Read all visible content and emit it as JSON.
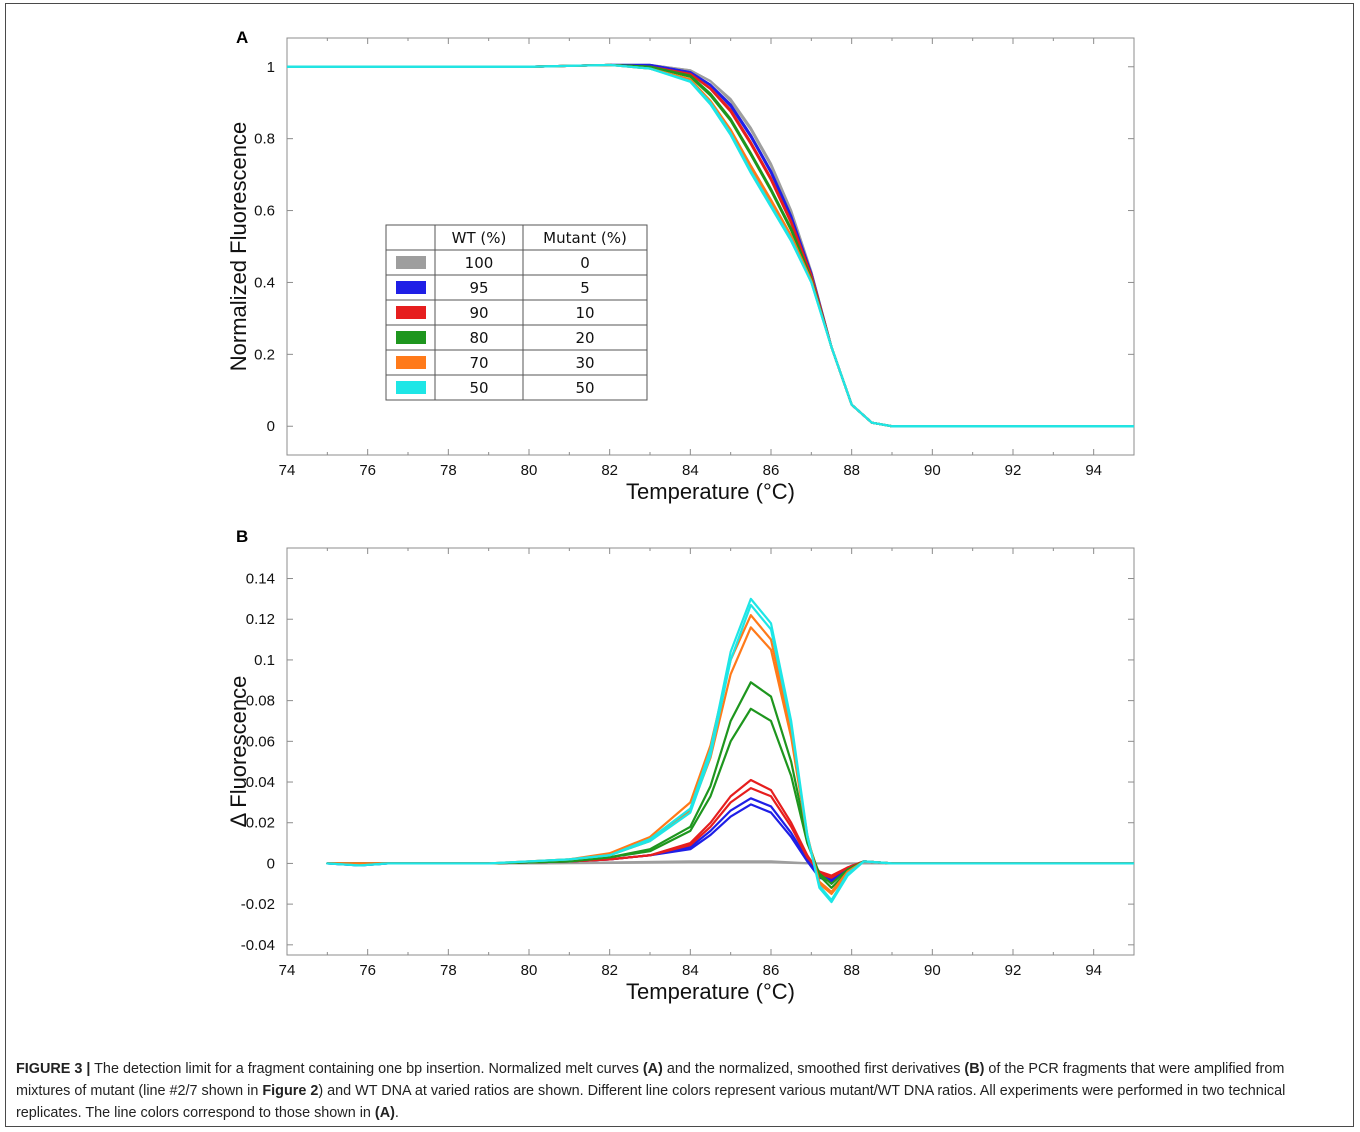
{
  "colors": {
    "100/0": "#9e9e9e",
    "95/5": "#1f1fe6",
    "90/10": "#e61e1e",
    "80/20": "#1e961e",
    "70/30": "#ff7a1a",
    "50/50": "#1ee6e6"
  },
  "chart_data": [
    {
      "panel": "A",
      "type": "line",
      "xlabel": "Temperature (°C)",
      "ylabel": "Normalized Fluorescence",
      "xlim": [
        74,
        95
      ],
      "ylim": [
        -0.08,
        1.08
      ],
      "xticks": [
        "74",
        "76",
        "78",
        "80",
        "82",
        "84",
        "86",
        "88",
        "90",
        "92",
        "94"
      ],
      "yticks": [
        "0",
        "0.2",
        "0.4",
        "0.6",
        "0.8",
        "1"
      ],
      "grid": false,
      "legend_table": {
        "headers": [
          "",
          "WT (%)",
          "Mutant (%)"
        ],
        "rows": [
          {
            "key": "100/0",
            "wt": "100",
            "mutant": "0"
          },
          {
            "key": "95/5",
            "wt": "95",
            "mutant": "5"
          },
          {
            "key": "90/10",
            "wt": "90",
            "mutant": "10"
          },
          {
            "key": "80/20",
            "wt": "80",
            "mutant": "20"
          },
          {
            "key": "70/30",
            "wt": "70",
            "mutant": "30"
          },
          {
            "key": "50/50",
            "wt": "50",
            "mutant": "50"
          }
        ]
      },
      "series": [
        {
          "key": "100/0",
          "x": [
            74,
            80,
            82,
            83,
            84,
            84.5,
            85,
            85.5,
            86,
            86.5,
            87,
            87.5,
            88,
            88.5,
            89,
            95
          ],
          "y": [
            1,
            1,
            1.005,
            1.005,
            0.99,
            0.96,
            0.91,
            0.83,
            0.73,
            0.6,
            0.43,
            0.22,
            0.06,
            0.01,
            0,
            0
          ]
        },
        {
          "key": "100/0",
          "x": [
            74,
            80,
            82,
            83,
            84,
            84.5,
            85,
            85.5,
            86,
            86.5,
            87,
            87.5,
            88,
            88.5,
            89,
            95
          ],
          "y": [
            1,
            1,
            1.005,
            1.005,
            0.99,
            0.96,
            0.905,
            0.825,
            0.725,
            0.595,
            0.43,
            0.22,
            0.06,
            0.01,
            0,
            0
          ]
        },
        {
          "key": "95/5",
          "x": [
            74,
            80,
            82,
            83,
            84,
            84.5,
            85,
            85.5,
            86,
            86.5,
            87,
            87.5,
            88,
            88.5,
            89,
            95
          ],
          "y": [
            1,
            1,
            1.005,
            1.005,
            0.985,
            0.95,
            0.895,
            0.81,
            0.71,
            0.585,
            0.425,
            0.22,
            0.06,
            0.01,
            0,
            0
          ]
        },
        {
          "key": "95/5",
          "x": [
            74,
            80,
            82,
            83,
            84,
            84.5,
            85,
            85.5,
            86,
            86.5,
            87,
            87.5,
            88,
            88.5,
            89,
            95
          ],
          "y": [
            1,
            1,
            1.005,
            1.005,
            0.985,
            0.948,
            0.89,
            0.805,
            0.705,
            0.58,
            0.425,
            0.22,
            0.06,
            0.01,
            0,
            0
          ]
        },
        {
          "key": "90/10",
          "x": [
            74,
            80,
            82,
            83,
            84,
            84.5,
            85,
            85.5,
            86,
            86.5,
            87,
            87.5,
            88,
            88.5,
            89,
            95
          ],
          "y": [
            1,
            1,
            1.005,
            1.0,
            0.98,
            0.94,
            0.88,
            0.79,
            0.69,
            0.57,
            0.42,
            0.22,
            0.06,
            0.01,
            0,
            0
          ]
        },
        {
          "key": "90/10",
          "x": [
            74,
            80,
            82,
            83,
            84,
            84.5,
            85,
            85.5,
            86,
            86.5,
            87,
            87.5,
            88,
            88.5,
            89,
            95
          ],
          "y": [
            1,
            1,
            1.005,
            1.0,
            0.98,
            0.938,
            0.875,
            0.785,
            0.685,
            0.565,
            0.42,
            0.22,
            0.06,
            0.01,
            0,
            0
          ]
        },
        {
          "key": "80/20",
          "x": [
            74,
            80,
            82,
            83,
            84,
            84.5,
            85,
            85.5,
            86,
            86.5,
            87,
            87.5,
            88,
            88.5,
            89,
            95
          ],
          "y": [
            1,
            1,
            1.005,
            1.0,
            0.975,
            0.925,
            0.855,
            0.76,
            0.66,
            0.55,
            0.41,
            0.22,
            0.06,
            0.01,
            0,
            0
          ]
        },
        {
          "key": "80/20",
          "x": [
            74,
            80,
            82,
            83,
            84,
            84.5,
            85,
            85.5,
            86,
            86.5,
            87,
            87.5,
            88,
            88.5,
            89,
            95
          ],
          "y": [
            1,
            1,
            1.005,
            1.0,
            0.972,
            0.92,
            0.85,
            0.755,
            0.655,
            0.545,
            0.41,
            0.22,
            0.06,
            0.01,
            0,
            0
          ]
        },
        {
          "key": "70/30",
          "x": [
            74,
            80,
            82,
            83,
            84,
            84.5,
            85,
            85.5,
            86,
            86.5,
            87,
            87.5,
            88,
            88.5,
            89,
            95
          ],
          "y": [
            1,
            1,
            1.005,
            0.995,
            0.965,
            0.905,
            0.825,
            0.725,
            0.63,
            0.53,
            0.405,
            0.22,
            0.06,
            0.01,
            0,
            0
          ]
        },
        {
          "key": "70/30",
          "x": [
            74,
            80,
            82,
            83,
            84,
            84.5,
            85,
            85.5,
            86,
            86.5,
            87,
            87.5,
            88,
            88.5,
            89,
            95
          ],
          "y": [
            1,
            1,
            1.005,
            0.995,
            0.962,
            0.9,
            0.82,
            0.72,
            0.625,
            0.525,
            0.405,
            0.22,
            0.06,
            0.01,
            0,
            0
          ]
        },
        {
          "key": "50/50",
          "x": [
            74,
            80,
            82,
            83,
            84,
            84.5,
            85,
            85.5,
            86,
            86.5,
            87,
            87.5,
            88,
            88.5,
            89,
            95
          ],
          "y": [
            1,
            1,
            1.005,
            0.995,
            0.96,
            0.9,
            0.815,
            0.71,
            0.615,
            0.52,
            0.4,
            0.22,
            0.06,
            0.01,
            0,
            0
          ]
        },
        {
          "key": "50/50",
          "x": [
            74,
            80,
            82,
            83,
            84,
            84.5,
            85,
            85.5,
            86,
            86.5,
            87,
            87.5,
            88,
            88.5,
            89,
            95
          ],
          "y": [
            1,
            1,
            1.005,
            0.995,
            0.958,
            0.895,
            0.81,
            0.705,
            0.61,
            0.515,
            0.4,
            0.22,
            0.06,
            0.01,
            0,
            0
          ]
        }
      ]
    },
    {
      "panel": "B",
      "type": "line",
      "xlabel": "Temperature (°C)",
      "ylabel": "Δ Fluorescence",
      "xlim": [
        74,
        95
      ],
      "ylim": [
        -0.045,
        0.155
      ],
      "xticks": [
        "74",
        "76",
        "78",
        "80",
        "82",
        "84",
        "86",
        "88",
        "90",
        "92",
        "94"
      ],
      "yticks": [
        "-0.04",
        "-0.02",
        "0",
        "0.02",
        "0.04",
        "0.06",
        "0.08",
        "0.1",
        "0.12",
        "0.14"
      ],
      "grid": false,
      "series": [
        {
          "key": "100/0",
          "x": [
            75,
            80,
            84,
            86,
            87,
            88,
            95
          ],
          "y": [
            0,
            0,
            0.001,
            0.001,
            0,
            0,
            0
          ]
        },
        {
          "key": "100/0",
          "x": [
            75,
            80,
            84,
            86,
            87,
            88,
            95
          ],
          "y": [
            0,
            0,
            0.0005,
            0.0005,
            0,
            0,
            0
          ]
        },
        {
          "key": "95/5",
          "x": [
            75,
            75.8,
            76.5,
            79,
            81,
            82,
            83,
            84,
            84.5,
            85,
            85.5,
            86,
            86.5,
            86.9,
            87.2,
            87.5,
            87.9,
            88.3,
            89,
            95
          ],
          "y": [
            0,
            -0.001,
            0,
            0,
            0.001,
            0.002,
            0.004,
            0.008,
            0.016,
            0.026,
            0.032,
            0.028,
            0.015,
            0.002,
            -0.006,
            -0.008,
            -0.002,
            0.001,
            0,
            0
          ]
        },
        {
          "key": "95/5",
          "x": [
            75,
            75.8,
            76.5,
            79,
            81,
            82,
            83,
            84,
            84.5,
            85,
            85.5,
            86,
            86.5,
            86.9,
            87.2,
            87.5,
            87.9,
            88.3,
            89,
            95
          ],
          "y": [
            0,
            -0.001,
            0,
            0,
            0.001,
            0.002,
            0.004,
            0.007,
            0.014,
            0.023,
            0.029,
            0.025,
            0.013,
            0.001,
            -0.007,
            -0.009,
            -0.003,
            0.001,
            0,
            0
          ]
        },
        {
          "key": "90/10",
          "x": [
            75,
            79,
            81,
            82,
            83,
            84,
            84.5,
            85,
            85.5,
            86,
            86.5,
            86.9,
            87.2,
            87.5,
            87.9,
            88.3,
            89,
            95
          ],
          "y": [
            0,
            0,
            0.001,
            0.002,
            0.004,
            0.01,
            0.02,
            0.033,
            0.041,
            0.036,
            0.02,
            0.004,
            -0.005,
            -0.007,
            -0.002,
            0.001,
            0,
            0
          ]
        },
        {
          "key": "90/10",
          "x": [
            75,
            79,
            81,
            82,
            83,
            84,
            84.5,
            85,
            85.5,
            86,
            86.5,
            86.9,
            87.2,
            87.5,
            87.9,
            88.3,
            89,
            95
          ],
          "y": [
            0,
            0,
            0.001,
            0.002,
            0.004,
            0.009,
            0.018,
            0.03,
            0.037,
            0.033,
            0.018,
            0.003,
            -0.004,
            -0.006,
            -0.002,
            0.001,
            0,
            0
          ]
        },
        {
          "key": "80/20",
          "x": [
            75,
            79,
            81,
            82,
            83,
            84,
            84.5,
            85,
            85.5,
            86,
            86.5,
            86.9,
            87.2,
            87.5,
            87.9,
            88.3,
            89,
            95
          ],
          "y": [
            0,
            0,
            0.001,
            0.003,
            0.007,
            0.018,
            0.038,
            0.07,
            0.089,
            0.082,
            0.05,
            0.012,
            -0.006,
            -0.012,
            -0.004,
            0.001,
            0,
            0
          ]
        },
        {
          "key": "80/20",
          "x": [
            75,
            79,
            81,
            82,
            83,
            84,
            84.5,
            85,
            85.5,
            86,
            86.5,
            86.9,
            87.2,
            87.5,
            87.9,
            88.3,
            89,
            95
          ],
          "y": [
            0,
            0,
            0.001,
            0.003,
            0.006,
            0.016,
            0.033,
            0.06,
            0.076,
            0.07,
            0.043,
            0.01,
            -0.005,
            -0.01,
            -0.003,
            0.001,
            0,
            0
          ]
        },
        {
          "key": "70/30",
          "x": [
            75,
            79,
            81,
            82,
            83,
            84,
            84.5,
            85,
            85.5,
            86,
            86.5,
            86.9,
            87.2,
            87.5,
            87.9,
            88.3,
            89,
            95
          ],
          "y": [
            0,
            0,
            0.002,
            0.005,
            0.013,
            0.03,
            0.058,
            0.1,
            0.122,
            0.11,
            0.065,
            0.014,
            -0.01,
            -0.015,
            -0.005,
            0.001,
            0,
            0
          ]
        },
        {
          "key": "70/30",
          "x": [
            75,
            79,
            81,
            82,
            83,
            84,
            84.5,
            85,
            85.5,
            86,
            86.5,
            86.9,
            87.2,
            87.5,
            87.9,
            88.3,
            89,
            95
          ],
          "y": [
            0,
            0,
            0.002,
            0.004,
            0.011,
            0.026,
            0.052,
            0.093,
            0.116,
            0.105,
            0.062,
            0.013,
            -0.009,
            -0.014,
            -0.004,
            0.001,
            0,
            0
          ]
        },
        {
          "key": "50/50",
          "x": [
            75,
            75.8,
            76.5,
            79,
            81,
            82,
            83,
            84,
            84.5,
            85,
            85.5,
            86,
            86.5,
            86.9,
            87.2,
            87.5,
            87.9,
            88.3,
            89,
            95
          ],
          "y": [
            0,
            -0.001,
            0,
            0,
            0.002,
            0.004,
            0.012,
            0.027,
            0.056,
            0.104,
            0.13,
            0.118,
            0.07,
            0.014,
            -0.012,
            -0.019,
            -0.006,
            0.001,
            0,
            0
          ]
        },
        {
          "key": "50/50",
          "x": [
            75,
            75.8,
            76.5,
            79,
            81,
            82,
            83,
            84,
            84.5,
            85,
            85.5,
            86,
            86.5,
            86.9,
            87.2,
            87.5,
            87.9,
            88.3,
            89,
            95
          ],
          "y": [
            0,
            -0.001,
            0,
            0,
            0.002,
            0.004,
            0.011,
            0.025,
            0.053,
            0.1,
            0.127,
            0.115,
            0.068,
            0.013,
            -0.011,
            -0.018,
            -0.005,
            0.001,
            0,
            0
          ]
        }
      ]
    }
  ],
  "caption": {
    "label": "FIGURE 3 |",
    "part1": " The detection limit for a fragment containing one bp insertion. Normalized melt curves ",
    "ref_a": "(A)",
    "part2": " and the normalized, smoothed first derivatives ",
    "ref_b": "(B)",
    "part3": " of the PCR fragments that were amplified from mixtures of mutant (line #2/7 shown in ",
    "fig_ref": "Figure 2",
    "part4": ") and WT DNA at varied ratios are shown. Different line colors represent various mutant/WT DNA ratios. All experiments were performed in two technical replicates. The line colors correspond to those shown in ",
    "ref_a2": "(A)",
    "part5": "."
  }
}
